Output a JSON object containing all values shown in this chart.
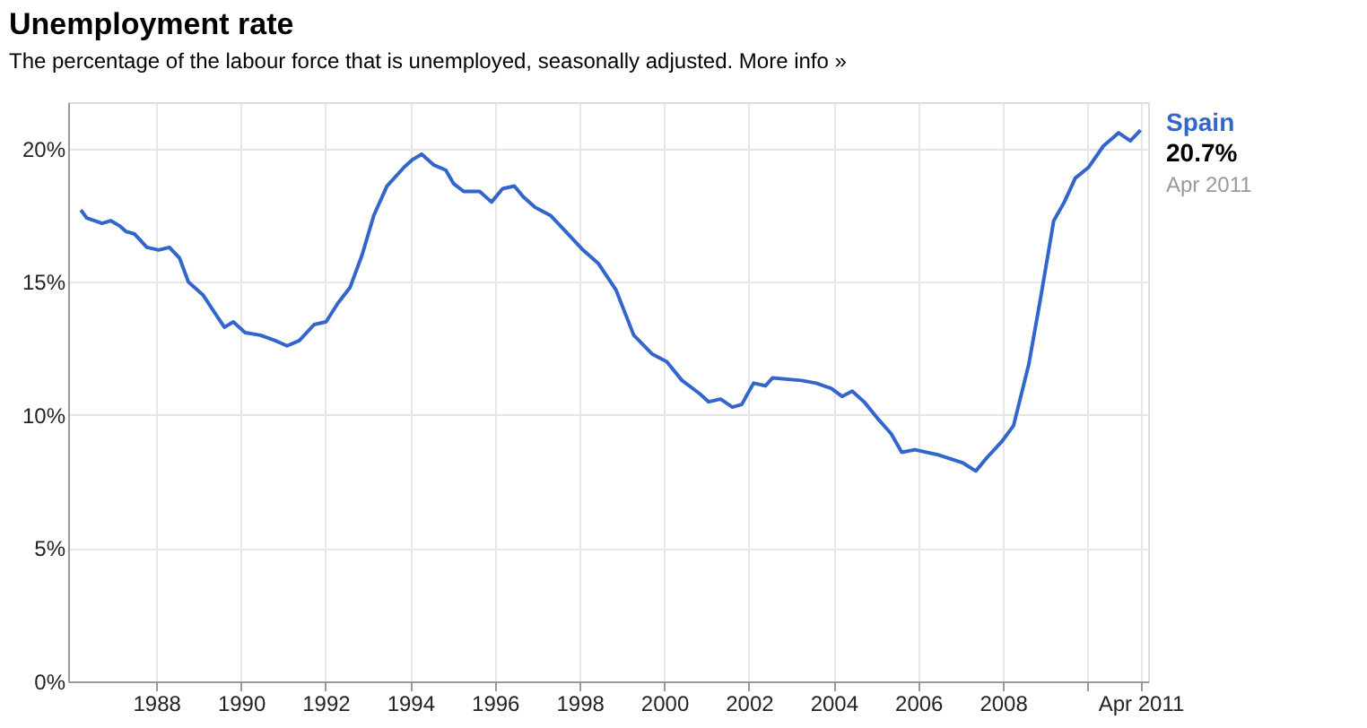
{
  "chart_data": {
    "type": "line",
    "title": "Unemployment rate",
    "subtitle": "The percentage of the labour force that is unemployed, seasonally adjusted. More info »",
    "annotations": [
      "20.7%",
      "Apr 2011"
    ],
    "xlim": [
      1985.92,
      2011.43
    ],
    "ylim": [
      0,
      21.75
    ],
    "xticks": [
      1988,
      1990,
      1992,
      1994,
      1996,
      1998,
      2000,
      2002,
      2004,
      2006,
      2008,
      {
        "value": 2010,
        "label": null
      },
      {
        "value": 2011.25,
        "label": "Apr 2011"
      }
    ],
    "yticks": [
      {
        "value": 0,
        "label": "0%"
      },
      {
        "value": 5,
        "label": "5%"
      },
      {
        "value": 10,
        "label": "10%"
      },
      {
        "value": 15,
        "label": "15%"
      },
      {
        "value": 20,
        "label": "20%"
      }
    ],
    "grid": true,
    "legend": false,
    "marker": "none",
    "line_style": "solid",
    "series": [
      {
        "name": "Spain",
        "color": "#3366cc",
        "x": [
          1986.22,
          1986.36,
          1986.72,
          1986.93,
          1987.14,
          1987.28,
          1987.49,
          1987.78,
          1988.06,
          1988.31,
          1988.55,
          1988.76,
          1989.11,
          1989.4,
          1989.61,
          1989.82,
          1990.1,
          1990.46,
          1990.81,
          1991.09,
          1991.38,
          1991.73,
          1992.01,
          1992.29,
          1992.58,
          1992.86,
          1993.14,
          1993.45,
          1993.85,
          1994.06,
          1994.27,
          1994.55,
          1994.84,
          1995.02,
          1995.26,
          1995.64,
          1995.92,
          1996.18,
          1996.46,
          1996.67,
          1996.95,
          1997.31,
          1997.73,
          1998.08,
          1998.44,
          1998.86,
          1999.28,
          1999.71,
          2000.06,
          2000.42,
          2000.84,
          2001.05,
          2001.33,
          2001.61,
          2001.83,
          2002.11,
          2002.39,
          2002.56,
          2003.24,
          2003.59,
          2003.95,
          2004.2,
          2004.44,
          2004.72,
          2005.08,
          2005.36,
          2005.61,
          2005.92,
          2006.49,
          2007.06,
          2007.36,
          2007.62,
          2007.97,
          2008.25,
          2008.61,
          2008.89,
          2009.2,
          2009.45,
          2009.71,
          2010.02,
          2010.37,
          2010.73,
          2011.01,
          2011.25
        ],
        "values": [
          17.7,
          17.4,
          17.2,
          17.3,
          17.1,
          16.9,
          16.8,
          16.3,
          16.2,
          16.3,
          15.9,
          15.0,
          14.5,
          13.8,
          13.3,
          13.5,
          13.1,
          13.0,
          12.8,
          12.6,
          12.8,
          13.4,
          13.5,
          14.2,
          14.8,
          16.0,
          17.5,
          18.6,
          19.3,
          19.6,
          19.8,
          19.4,
          19.2,
          18.7,
          18.4,
          18.4,
          18.0,
          18.5,
          18.6,
          18.2,
          17.8,
          17.5,
          16.8,
          16.2,
          15.7,
          14.7,
          13.0,
          12.3,
          12.0,
          11.3,
          10.8,
          10.5,
          10.6,
          10.3,
          10.4,
          11.2,
          11.1,
          11.4,
          11.3,
          11.2,
          11.0,
          10.7,
          10.9,
          10.5,
          9.8,
          9.3,
          8.6,
          8.7,
          8.5,
          8.2,
          7.9,
          8.4,
          9.0,
          9.6,
          11.9,
          14.4,
          17.3,
          18.0,
          18.9,
          19.3,
          20.1,
          20.6,
          20.3,
          20.7
        ]
      }
    ]
  }
}
